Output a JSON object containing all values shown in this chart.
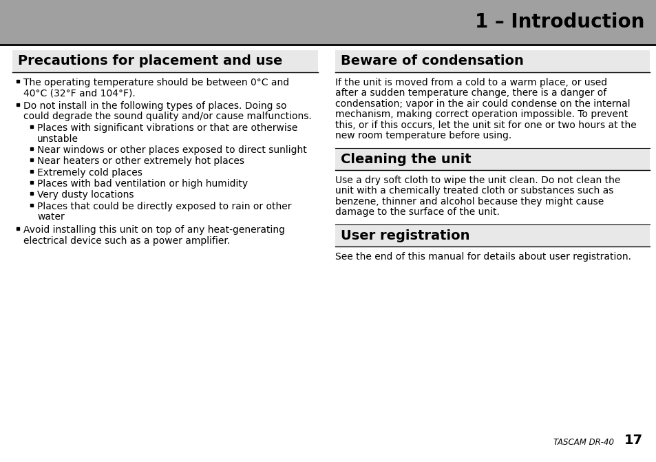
{
  "bg_color": "#ffffff",
  "header_bg": "#a0a0a0",
  "header_text_color": "#000000",
  "header_text": "1 – Introduction",
  "section_title_bg": "#e8e8e8",
  "left_title": "Precautions for placement and use",
  "right_section1_title": "Beware of condensation",
  "right_section2_title": "Cleaning the unit",
  "right_section3_title": "User registration",
  "body1_lines": [
    "If the unit is moved from a cold to a warm place, or used",
    "after a sudden temperature change, there is a danger of",
    "condensation; vapor in the air could condense on the internal",
    "mechanism, making correct operation impossible. To prevent",
    "this, or if this occurs, let the unit sit for one or two hours at the",
    "new room temperature before using."
  ],
  "body2_lines": [
    "Use a dry soft cloth to wipe the unit clean. Do not clean the",
    "unit with a chemically treated cloth or substances such as",
    "benzene, thinner and alcohol because they might cause",
    "damage to the surface of the unit."
  ],
  "body3_lines": [
    "See the end of this manual for details about user registration."
  ],
  "left_l1_items": [
    [
      "The operating temperature should be between 0°C and",
      "40°C (32°F and 104°F)."
    ],
    [
      "Do not install in the following types of places. Doing so",
      "could degrade the sound quality and/or cause malfunctions."
    ],
    [
      "Avoid installing this unit on top of any heat-generating",
      "electrical device such as a power amplifier."
    ]
  ],
  "left_l2_items": [
    [
      "Places with significant vibrations or that are otherwise",
      "unstable"
    ],
    [
      "Near windows or other places exposed to direct sunlight"
    ],
    [
      "Near heaters or other extremely hot places"
    ],
    [
      "Extremely cold places"
    ],
    [
      "Places with bad ventilation or high humidity"
    ],
    [
      "Very dusty locations"
    ],
    [
      "Places that could be directly exposed to rain or other",
      "water"
    ]
  ],
  "footer_label": "TASCAM DR-40",
  "footer_page": "17",
  "header_fontsize": 20,
  "title_fontsize": 14,
  "body_fontsize": 10
}
